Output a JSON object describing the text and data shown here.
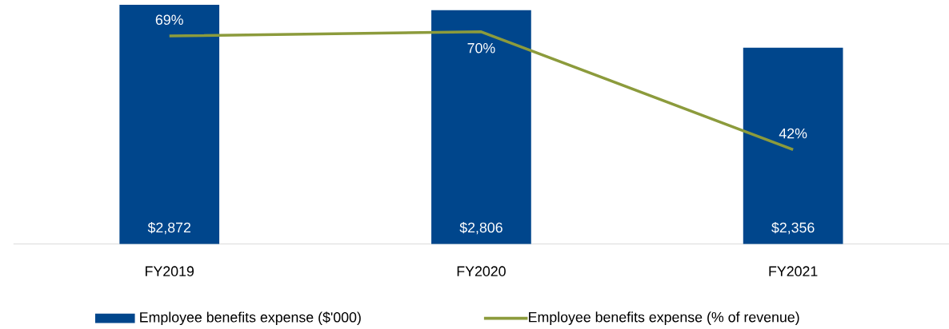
{
  "chart_data": {
    "type": "bar",
    "categories": [
      "FY2019",
      "FY2020",
      "FY2021"
    ],
    "series": [
      {
        "name": "Employee benefits expense ($'000)",
        "color": "#00468c",
        "values": [
          2872,
          2806,
          2356
        ],
        "value_labels": [
          "$2,872",
          "$2,806",
          "$2,356"
        ]
      },
      {
        "type": "line",
        "axis": "y2",
        "name": "Employee benefits expense (% of revenue)",
        "color": "#8c9b3c",
        "values": [
          69,
          70,
          42
        ],
        "value_labels": [
          "69%",
          "70%",
          "42%"
        ]
      }
    ],
    "legend": "bottom"
  }
}
